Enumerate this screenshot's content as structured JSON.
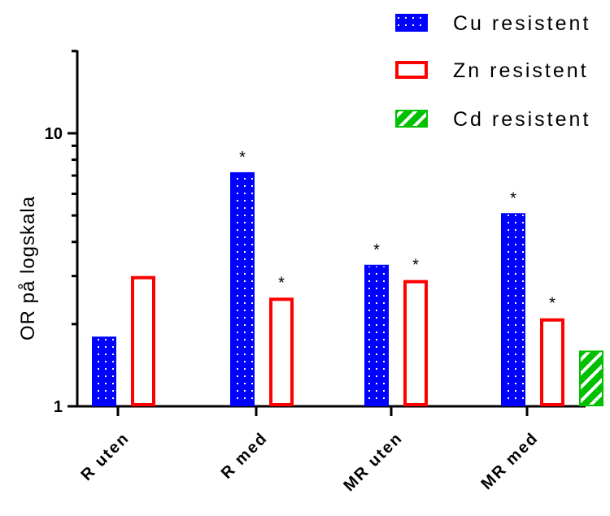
{
  "chart_data": {
    "type": "bar",
    "title": "",
    "xlabel": "",
    "ylabel": "OR på logskala",
    "yscale": "log",
    "ylim": [
      1,
      20
    ],
    "yticks_labeled": [
      {
        "value": 1,
        "label": "1"
      },
      {
        "value": 10,
        "label": "10"
      }
    ],
    "categories": [
      "R uten",
      "R med",
      "MR uten",
      "MR med"
    ],
    "series": [
      {
        "name": "Cu resistent",
        "color": "#0000ff",
        "pattern": "dots",
        "values": [
          1.8,
          7.2,
          3.3,
          5.1
        ],
        "significant": [
          false,
          true,
          true,
          true
        ]
      },
      {
        "name": "Zn resistent",
        "color": "#ff0000",
        "pattern": "hollow",
        "values": [
          3.0,
          2.5,
          2.9,
          2.1
        ],
        "significant": [
          false,
          true,
          true,
          true
        ]
      },
      {
        "name": "Cd resistent",
        "color": "#00c000",
        "pattern": "stripes",
        "values": [
          null,
          null,
          null,
          1.6
        ],
        "significant": [
          false,
          false,
          false,
          false
        ]
      }
    ],
    "significance_marker": "*",
    "legend_position": "top-right"
  }
}
